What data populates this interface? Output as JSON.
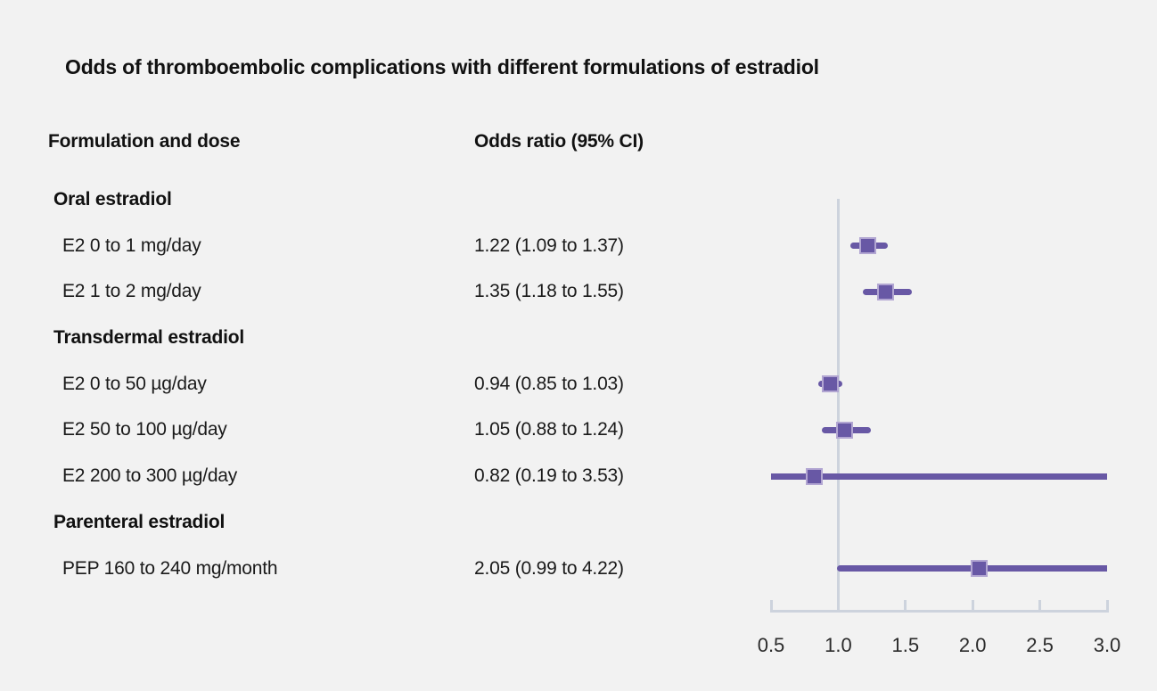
{
  "title": "Odds of thromboembolic complications with different formulations of estradiol",
  "columns": {
    "formulation": "Formulation and dose",
    "odds_ratio": "Odds ratio (95% CI)"
  },
  "rows": [
    {
      "type": "group",
      "label": "Oral estradiol"
    },
    {
      "type": "item",
      "label": "E2 0 to 1 mg/day",
      "value": "1.22 (1.09 to 1.37)"
    },
    {
      "type": "item",
      "label": "E2 1 to 2 mg/day",
      "value": "1.35 (1.18 to 1.55)"
    },
    {
      "type": "group",
      "label": "Transdermal estradiol"
    },
    {
      "type": "item",
      "label": "E2 0 to 50 µg/day",
      "value": "0.94 (0.85 to 1.03)"
    },
    {
      "type": "item",
      "label": "E2 50 to 100 µg/day",
      "value": "1.05 (0.88 to 1.24)"
    },
    {
      "type": "item",
      "label": "E2 200 to 300 µg/day",
      "value": "0.82 (0.19 to 3.53)"
    },
    {
      "type": "group",
      "label": "Parenteral estradiol"
    },
    {
      "type": "item",
      "label": "PEP 160 to 240 mg/month",
      "value": "2.05 (0.99 to 4.22)"
    }
  ],
  "chart_data": {
    "type": "scatter",
    "subtype": "forest-plot",
    "title": "Odds of thromboembolic complications with different formulations of estradiol",
    "xlabel": "Odds ratio (95% CI)",
    "axis": {
      "min": 0.5,
      "max": 3.0,
      "ticks": [
        0.5,
        1.0,
        1.5,
        2.0,
        2.5,
        3.0
      ],
      "tick_labels": [
        "0.5",
        "1.0",
        "1.5",
        "2.0",
        "2.5",
        "3.0"
      ],
      "reference_line": 1.0,
      "grid": false,
      "note": "confidence intervals wider than axis range are clipped at 0.5 and 3.0"
    },
    "series": [
      {
        "label": "E2 0 to 1 mg/day",
        "or": 1.22,
        "ci_low": 1.09,
        "ci_high": 1.37,
        "row_index": 1
      },
      {
        "label": "E2 1 to 2 mg/day",
        "or": 1.35,
        "ci_low": 1.18,
        "ci_high": 1.55,
        "row_index": 2
      },
      {
        "label": "E2 0 to 50 µg/day",
        "or": 0.94,
        "ci_low": 0.85,
        "ci_high": 1.03,
        "row_index": 4
      },
      {
        "label": "E2 50 to 100 µg/day",
        "or": 1.05,
        "ci_low": 0.88,
        "ci_high": 1.24,
        "row_index": 5
      },
      {
        "label": "E2 200 to 300 µg/day",
        "or": 0.82,
        "ci_low": 0.19,
        "ci_high": 3.53,
        "row_index": 6
      },
      {
        "label": "PEP 160 to 240 mg/month",
        "or": 2.05,
        "ci_low": 0.99,
        "ci_high": 4.22,
        "row_index": 8
      }
    ],
    "colors": {
      "background": "#f2f2f2",
      "text": "#1a1a1a",
      "ci_line": "#6858a5",
      "marker_fill": "#6858a5",
      "marker_border": "#b2a6d2",
      "axis_line": "#cdd3dd"
    }
  }
}
